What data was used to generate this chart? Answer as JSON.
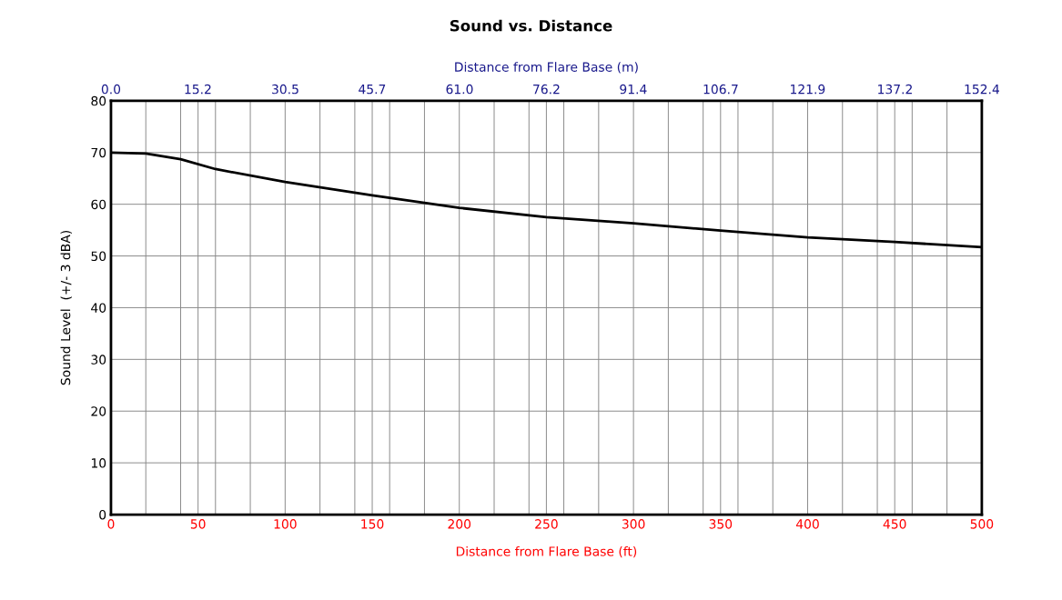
{
  "chart_data": {
    "type": "line",
    "title": "Sound vs. Distance",
    "xlabel": "Distance from Flare Base (ft)",
    "x2label": "Distance from Flare Base (m)",
    "ylabel": "Sound Level  (+/- 3 dBA)",
    "x": [
      0,
      20,
      40,
      60,
      100,
      150,
      200,
      250,
      300,
      350,
      400,
      450,
      500
    ],
    "series": [
      {
        "color": "#000000",
        "values": [
          70.0,
          69.8,
          68.7,
          66.8,
          64.3,
          61.7,
          59.3,
          57.5,
          56.3,
          54.9,
          53.6,
          52.7,
          51.7
        ]
      }
    ],
    "xlim": [
      0,
      500
    ],
    "xticks": [
      0,
      {
        "value": 20,
        "label": null
      },
      {
        "value": 40,
        "label": null
      },
      50,
      {
        "value": 60,
        "label": null
      },
      {
        "value": 80,
        "label": null
      },
      100,
      {
        "value": 120,
        "label": null
      },
      {
        "value": 140,
        "label": null
      },
      150,
      {
        "value": 160,
        "label": null
      },
      {
        "value": 180,
        "label": null
      },
      200,
      {
        "value": 220,
        "label": null
      },
      {
        "value": 240,
        "label": null
      },
      250,
      {
        "value": 260,
        "label": null
      },
      {
        "value": 280,
        "label": null
      },
      300,
      {
        "value": 320,
        "label": null
      },
      {
        "value": 340,
        "label": null
      },
      350,
      {
        "value": 360,
        "label": null
      },
      {
        "value": 380,
        "label": null
      },
      400,
      {
        "value": 420,
        "label": null
      },
      {
        "value": 440,
        "label": null
      },
      450,
      {
        "value": 460,
        "label": null
      },
      {
        "value": 480,
        "label": null
      },
      500
    ],
    "x2lim": [
      0,
      152.4
    ],
    "x2ticks": [
      {
        "value": 0,
        "label": "0.0"
      },
      15.2,
      30.5,
      45.7,
      {
        "value": 61,
        "label": "61.0"
      },
      76.2,
      91.4,
      106.7,
      121.9,
      137.2,
      152.4
    ],
    "ylim": [
      0,
      80
    ],
    "yticks": [
      0,
      10,
      20,
      30,
      40,
      50,
      60,
      70,
      80
    ],
    "grid": true,
    "marker": "none",
    "line_style": "solid"
  }
}
